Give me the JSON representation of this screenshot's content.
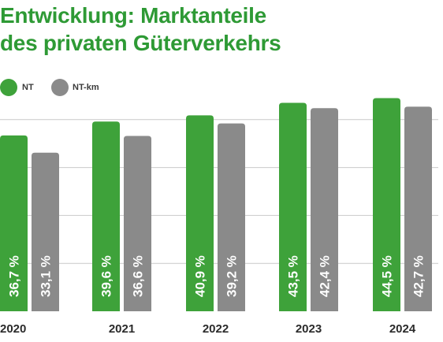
{
  "title": {
    "line1": "Entwicklung: Marktanteile",
    "line2": "des privaten Güterverkehrs"
  },
  "colors": {
    "title": "#2e9a35",
    "nt": "#3ea23a",
    "ntkm": "#8a8a8a",
    "grid": "#c9c9c9",
    "bar_label": "#ffffff",
    "tick_label": "#2b2b2b"
  },
  "legend": [
    {
      "label": "NT",
      "color": "#3ea23a"
    },
    {
      "label": "NT-km",
      "color": "#8a8a8a"
    }
  ],
  "chart_data": {
    "type": "bar",
    "title": "Entwicklung: Marktanteile des privaten Güterverkehrs",
    "categories": [
      "2020",
      "2021",
      "2022",
      "2023",
      "2024"
    ],
    "series": [
      {
        "name": "NT",
        "values": [
          36.7,
          39.6,
          40.9,
          43.5,
          44.5
        ],
        "labels": [
          "36,7 %",
          "39,6 %",
          "40,9 %",
          "43,5 %",
          "44,5 %"
        ]
      },
      {
        "name": "NT-km",
        "values": [
          33.1,
          36.6,
          39.2,
          42.4,
          42.7
        ],
        "labels": [
          "33,1 %",
          "36,6 %",
          "39,2 %",
          "42,4 %",
          "42,7 %"
        ]
      }
    ],
    "ylim": [
      0,
      50
    ],
    "grid": true,
    "legend_position": "top-left",
    "xlabel": "",
    "ylabel": ""
  }
}
